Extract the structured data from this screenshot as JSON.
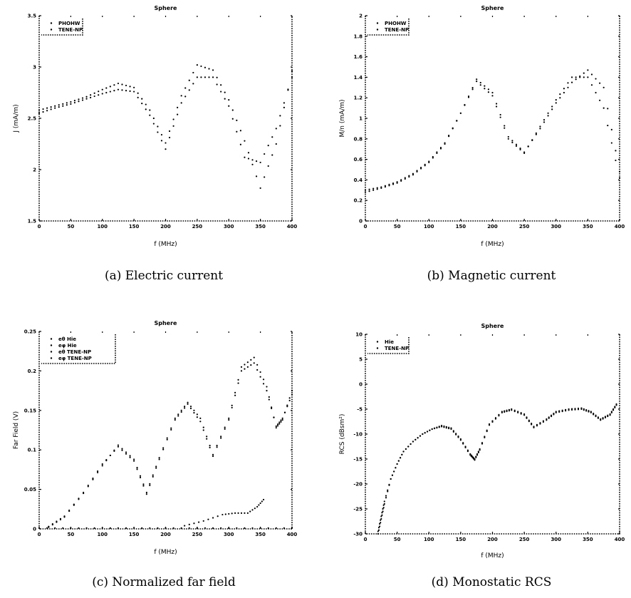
{
  "chart_data": [
    {
      "id": "a",
      "type": "scatter",
      "title": "Sphere",
      "xlabel": "f (MHz)",
      "ylabel": "J (mA/m)",
      "xlim": [
        0,
        400
      ],
      "ylim": [
        1.5,
        3.5
      ],
      "xticks": [
        0,
        50,
        100,
        150,
        200,
        250,
        300,
        350,
        400
      ],
      "yticks": [
        1.5,
        2,
        2.5,
        3,
        3.5
      ],
      "xtick_labels": [
        "0",
        "50",
        "100",
        "150",
        "200",
        "250",
        "300",
        "350",
        "400"
      ],
      "ytick_labels": [
        "1.5",
        "2",
        "2.5",
        "3",
        "3.5"
      ],
      "legend": {
        "position": "top-left",
        "entries": [
          "PHOHW",
          "TENE-NP"
        ]
      },
      "caption": "(a) Electric current",
      "series": [
        {
          "name": "PHOHW",
          "x": [
            0,
            25,
            50,
            75,
            100,
            125,
            150,
            175,
            200,
            225,
            250,
            275,
            300,
            325,
            350,
            375,
            400
          ],
          "y": [
            2.58,
            2.62,
            2.66,
            2.71,
            2.78,
            2.84,
            2.8,
            2.58,
            2.26,
            2.72,
            3.02,
            2.97,
            2.68,
            2.28,
            1.82,
            2.25,
            2.96
          ]
        },
        {
          "name": "TENE-NP",
          "x": [
            0,
            25,
            50,
            75,
            100,
            125,
            150,
            175,
            200,
            225,
            250,
            275,
            300,
            325,
            350,
            375,
            400
          ],
          "y": [
            2.55,
            2.6,
            2.64,
            2.69,
            2.74,
            2.78,
            2.76,
            2.53,
            2.2,
            2.65,
            2.9,
            2.9,
            2.62,
            2.12,
            2.07,
            2.4,
            2.9
          ]
        }
      ]
    },
    {
      "id": "b",
      "type": "scatter",
      "title": "Sphere",
      "xlabel": "f (MHz)",
      "ylabel": "M/n (mA/m)",
      "xlim": [
        0,
        400
      ],
      "ylim": [
        0,
        2
      ],
      "xticks": [
        0,
        50,
        100,
        150,
        200,
        250,
        300,
        350,
        400
      ],
      "yticks": [
        0,
        0.2,
        0.4,
        0.6,
        0.8,
        1,
        1.2,
        1.4,
        1.6,
        1.8,
        2
      ],
      "xtick_labels": [
        "0",
        "50",
        "100",
        "150",
        "200",
        "250",
        "300",
        "350",
        "400"
      ],
      "ytick_labels": [
        "0",
        "0.2",
        "0.4",
        "0.6",
        "0.8",
        "1",
        "1.2",
        "1.4",
        "1.6",
        "1.8",
        "2"
      ],
      "legend": {
        "position": "top-left",
        "entries": [
          "PHOHW",
          "TENE-NP"
        ]
      },
      "caption": "(b) Magnetic current",
      "series": [
        {
          "name": "PHOHW",
          "x": [
            0,
            25,
            50,
            75,
            100,
            125,
            150,
            175,
            200,
            225,
            250,
            275,
            300,
            325,
            350,
            375,
            400
          ],
          "y": [
            0.3,
            0.33,
            0.38,
            0.46,
            0.58,
            0.76,
            1.05,
            1.38,
            1.25,
            0.82,
            0.67,
            0.9,
            1.15,
            1.35,
            1.47,
            1.3,
            0.48
          ]
        },
        {
          "name": "TENE-NP",
          "x": [
            0,
            25,
            50,
            75,
            100,
            125,
            150,
            175,
            200,
            225,
            250,
            275,
            300,
            325,
            350,
            375,
            400
          ],
          "y": [
            0.28,
            0.32,
            0.37,
            0.45,
            0.57,
            0.75,
            1.05,
            1.36,
            1.22,
            0.8,
            0.66,
            0.92,
            1.18,
            1.4,
            1.4,
            1.1,
            0.42
          ]
        }
      ]
    },
    {
      "id": "c",
      "type": "scatter",
      "title": "Sphere",
      "xlabel": "f (MHz)",
      "ylabel": "Far Field (V)",
      "xlim": [
        0,
        400
      ],
      "ylim": [
        0,
        0.25
      ],
      "xticks": [
        0,
        50,
        100,
        150,
        200,
        250,
        300,
        350,
        400
      ],
      "yticks": [
        0,
        0.05,
        0.1,
        0.15,
        0.2,
        0.25
      ],
      "xtick_labels": [
        "0",
        "50",
        "100",
        "150",
        "200",
        "250",
        "300",
        "350",
        "400"
      ],
      "ytick_labels": [
        "0",
        "0.05",
        "0.1",
        "0.15",
        "0.2",
        "0.25"
      ],
      "legend": {
        "position": "top-left",
        "entries": [
          "eθ Hie",
          "eφ Hie",
          "eθ TENE-NP",
          "eφ TENE-NP"
        ]
      },
      "caption": "(c) Normalized far field",
      "series": [
        {
          "name": "eθ Hie",
          "x": [
            15,
            40,
            70,
            100,
            125,
            150,
            170,
            190,
            215,
            235,
            255,
            275,
            300,
            320,
            340,
            360,
            375,
            385,
            400
          ],
          "y": [
            0.002,
            0.015,
            0.045,
            0.08,
            0.106,
            0.088,
            0.046,
            0.09,
            0.14,
            0.16,
            0.14,
            0.094,
            0.14,
            0.205,
            0.217,
            0.18,
            0.128,
            0.138,
            0.175
          ]
        },
        {
          "name": "eφ Hie",
          "x": [
            230,
            260,
            290,
            310,
            330,
            345,
            355
          ],
          "y": [
            0.004,
            0.01,
            0.018,
            0.02,
            0.02,
            0.028,
            0.037
          ]
        },
        {
          "name": "eθ TENE-NP",
          "x": [
            15,
            40,
            70,
            100,
            125,
            150,
            170,
            190,
            215,
            235,
            255,
            275,
            300,
            320,
            340,
            360,
            375,
            385,
            400
          ],
          "y": [
            0.003,
            0.016,
            0.046,
            0.082,
            0.104,
            0.086,
            0.044,
            0.088,
            0.138,
            0.158,
            0.136,
            0.092,
            0.138,
            0.2,
            0.21,
            0.175,
            0.13,
            0.14,
            0.17
          ]
        },
        {
          "name": "eφ TENE-NP",
          "x": [
            0,
            50,
            100,
            150,
            200,
            250,
            300,
            350,
            400
          ],
          "y": [
            0.001,
            0.001,
            0.001,
            0.001,
            0.001,
            0.001,
            0.001,
            0.001,
            0.001
          ]
        }
      ]
    },
    {
      "id": "d",
      "type": "scatter",
      "title": "Sphere",
      "xlabel": "f (MHz)",
      "ylabel": "RCS (dBsm²)",
      "xlim": [
        0,
        400
      ],
      "ylim": [
        -30,
        10
      ],
      "xticks": [
        0,
        50,
        100,
        150,
        200,
        250,
        300,
        350,
        400
      ],
      "yticks": [
        -30,
        -25,
        -20,
        -15,
        -10,
        -5,
        0,
        5,
        10
      ],
      "xtick_labels": [
        "0",
        "50",
        "100",
        "150",
        "200",
        "250",
        "300",
        "350",
        "400"
      ],
      "ytick_labels": [
        "-30",
        "-25",
        "-20",
        "-15",
        "-10",
        "-5",
        "0",
        "5",
        "10"
      ],
      "legend": {
        "position": "top-left",
        "entries": [
          "Hie",
          "TENE-NP"
        ]
      },
      "caption": "(d) Monostatic RCS",
      "series": [
        {
          "name": "Hie",
          "x": [
            20,
            25,
            30,
            40,
            50,
            60,
            75,
            90,
            105,
            120,
            135,
            150,
            165,
            172,
            180,
            195,
            215,
            230,
            250,
            265,
            285,
            300,
            320,
            340,
            355,
            370,
            385,
            395
          ],
          "y": [
            -30,
            -27,
            -24,
            -19,
            -16,
            -13.5,
            -11.5,
            -10,
            -9,
            -8.3,
            -8.8,
            -11,
            -14,
            -15,
            -13,
            -8,
            -5.5,
            -5,
            -6,
            -8.5,
            -7,
            -5.5,
            -5,
            -4.8,
            -5.5,
            -7,
            -6,
            -4
          ]
        },
        {
          "name": "TENE-NP",
          "x": [
            20,
            25,
            30,
            40,
            50,
            60,
            75,
            90,
            105,
            120,
            135,
            150,
            165,
            172,
            180,
            195,
            215,
            230,
            250,
            265,
            285,
            300,
            320,
            340,
            355,
            370,
            385,
            395
          ],
          "y": [
            -29.5,
            -26.5,
            -23.5,
            -19,
            -16,
            -13.5,
            -11.5,
            -10,
            -9,
            -8.5,
            -9,
            -11.2,
            -14.2,
            -15.2,
            -13.2,
            -8.2,
            -5.7,
            -5.2,
            -6.2,
            -8.7,
            -7.2,
            -5.7,
            -5.2,
            -5,
            -5.7,
            -7.2,
            -6.2,
            -4.2
          ]
        }
      ]
    }
  ]
}
